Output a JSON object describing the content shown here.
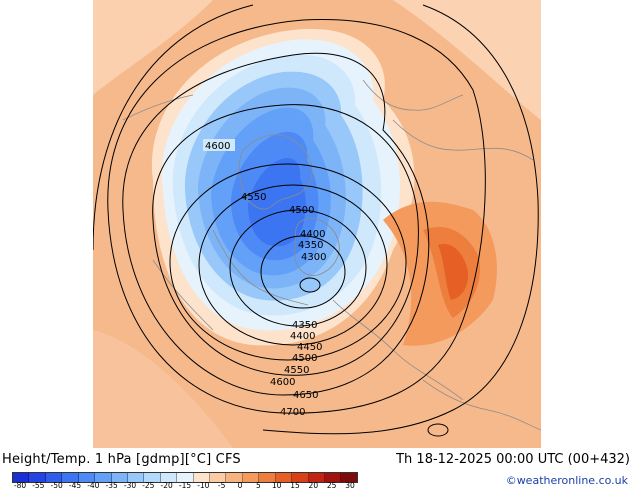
{
  "header": {
    "title": "Height/Temp. 1 hPa [gdmp][°C] CFS",
    "valid_time": "Th 18-12-2025 00:00 UTC (00+432)"
  },
  "footer": {
    "credit": "©weatheronline.co.uk"
  },
  "legend": {
    "ticks": [
      "-80",
      "-55",
      "-50",
      "-45",
      "-40",
      "-35",
      "-30",
      "-25",
      "-20",
      "-15",
      "-10",
      "-5",
      "0",
      "5",
      "10",
      "15",
      "20",
      "25",
      "30"
    ],
    "colors": [
      "#1a2fd6",
      "#2346e2",
      "#2f5eec",
      "#3c75f2",
      "#4d8af5",
      "#63a0f7",
      "#7db4f8",
      "#98c8fa",
      "#b4dafb",
      "#cfe8fc",
      "#e6f3fd",
      "#fde3cc",
      "#fbcba4",
      "#f8b27f",
      "#f49a5d",
      "#ee7e3d",
      "#e65f25",
      "#d8401a",
      "#c22414",
      "#a2120f",
      "#7e0a0a"
    ]
  },
  "map": {
    "contours": [
      {
        "label": "4300"
      },
      {
        "label": "4350"
      },
      {
        "label": "4350"
      },
      {
        "label": "4400"
      },
      {
        "label": "4400"
      },
      {
        "label": "4450"
      },
      {
        "label": "4500"
      },
      {
        "label": "4500"
      },
      {
        "label": "4550"
      },
      {
        "label": "4550"
      },
      {
        "label": "4600"
      },
      {
        "label": "4600"
      },
      {
        "label": "4650"
      },
      {
        "label": "4700"
      }
    ]
  }
}
